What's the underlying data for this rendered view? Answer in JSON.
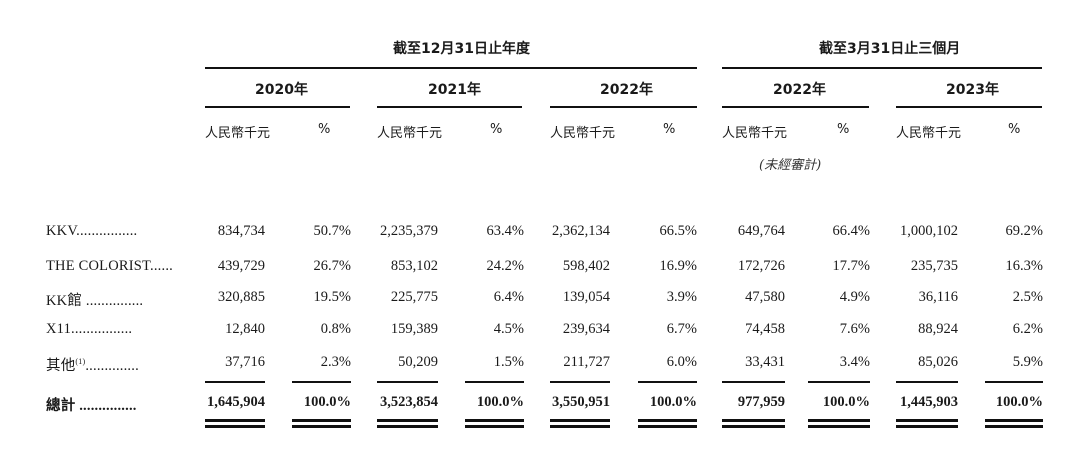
{
  "header": {
    "fy_label": "截至12月31日止年度",
    "q_label": "截至3月31日止三個月",
    "years": [
      "2020年",
      "2021年",
      "2022年",
      "2022年",
      "2023年"
    ],
    "unit_label": "人民幣千元",
    "pct_label": "%",
    "unaudited": "(未經審計)"
  },
  "rows": [
    {
      "label": "KKV................",
      "sup": "",
      "cells": [
        "834,734",
        "50.7%",
        "2,235,379",
        "63.4%",
        "2,362,134",
        "66.5%",
        "649,764",
        "66.4%",
        "1,000,102",
        "69.2%"
      ]
    },
    {
      "label": "THE COLORIST......",
      "sup": "",
      "cells": [
        "439,729",
        "26.7%",
        "853,102",
        "24.2%",
        "598,402",
        "16.9%",
        "172,726",
        "17.7%",
        "235,735",
        "16.3%"
      ]
    },
    {
      "label": "KK館 ...............",
      "sup": "",
      "cells": [
        "320,885",
        "19.5%",
        "225,775",
        "6.4%",
        "139,054",
        "3.9%",
        "47,580",
        "4.9%",
        "36,116",
        "2.5%"
      ]
    },
    {
      "label": "X11................",
      "sup": "",
      "cells": [
        "12,840",
        "0.8%",
        "159,389",
        "4.5%",
        "239,634",
        "6.7%",
        "74,458",
        "7.6%",
        "88,924",
        "6.2%"
      ]
    },
    {
      "label": "其他",
      "sup": "(1)",
      "suffix": "..............",
      "cells": [
        "37,716",
        "2.3%",
        "50,209",
        "1.5%",
        "211,727",
        "6.0%",
        "33,431",
        "3.4%",
        "85,026",
        "5.9%"
      ]
    }
  ],
  "total": {
    "label": "總計 ...............",
    "cells": [
      "1,645,904",
      "100.0%",
      "3,523,854",
      "100.0%",
      "3,550,951",
      "100.0%",
      "977,959",
      "100.0%",
      "1,445,903",
      "100.0%"
    ]
  }
}
